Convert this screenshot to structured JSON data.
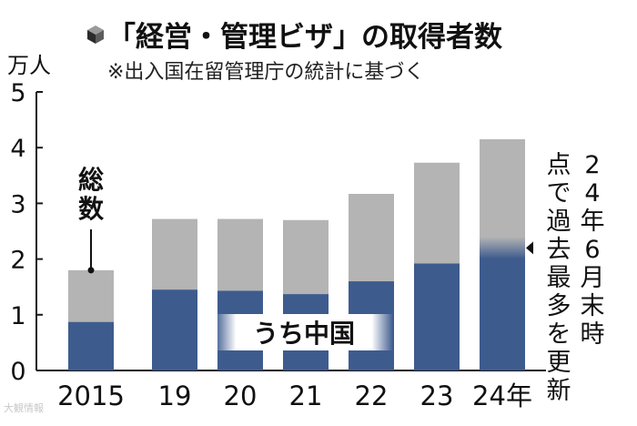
{
  "chart_data": {
    "type": "bar",
    "title": "「経営・管理ビザ」の取得者数",
    "subtitle": "※出入国在留管理庁の統計に基づく",
    "ylabel": "万人",
    "ylim": [
      0,
      5
    ],
    "yticks": [
      "0",
      "1",
      "2",
      "3",
      "4",
      "5"
    ],
    "categories": [
      "2015",
      "19",
      "20",
      "21",
      "22",
      "23",
      "24年"
    ],
    "series": [
      {
        "name": "総数",
        "values": [
          1.8,
          2.72,
          2.72,
          2.7,
          3.17,
          3.73,
          4.15
        ]
      },
      {
        "name": "うち中国",
        "values": [
          0.87,
          1.45,
          1.43,
          1.37,
          1.6,
          1.92,
          2.2
        ]
      }
    ],
    "annotations": {
      "total_label": "総数",
      "china_label": "うち中国",
      "record_note": "24年6月末時点で過去最多を更新"
    },
    "colors": {
      "total": "#b4b4b4",
      "china": "#3e5b8e",
      "axis": "#1a1a1a"
    },
    "legend": "inline",
    "grid": false
  },
  "watermark": "大観情報"
}
